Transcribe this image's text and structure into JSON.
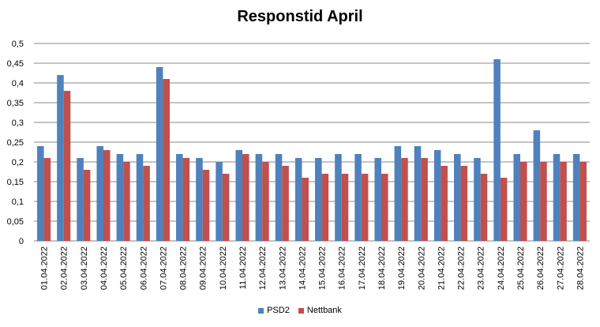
{
  "chart_data": {
    "type": "bar",
    "title": "Responstid April",
    "categories": [
      "01.04.2022",
      "02.04.2022",
      "03.04.2022",
      "04.04.2022",
      "05.04.2022",
      "06.04.2022",
      "07.04.2022",
      "08.04.2022",
      "09.04.2022",
      "10.04.2022",
      "11.04.2022",
      "12.04.2022",
      "13.04.2022",
      "14.04.2022",
      "15.04.2022",
      "16.04.2022",
      "17.04.2022",
      "18.04.2022",
      "19.04.2022",
      "20.04.2022",
      "21.04.2022",
      "22.04.2022",
      "23.04.2022",
      "24.04.2022",
      "25.04.2022",
      "26.04.2022",
      "27.04.2022",
      "28.04.2022"
    ],
    "series": [
      {
        "name": "PSD2",
        "color": "#4f81bd",
        "values": [
          0.24,
          0.42,
          0.21,
          0.24,
          0.22,
          0.22,
          0.44,
          0.22,
          0.21,
          0.2,
          0.23,
          0.22,
          0.22,
          0.21,
          0.21,
          0.22,
          0.22,
          0.21,
          0.24,
          0.24,
          0.23,
          0.22,
          0.21,
          0.46,
          0.22,
          0.28,
          0.22,
          0.22
        ]
      },
      {
        "name": "Nettbank",
        "color": "#c0504d",
        "values": [
          0.21,
          0.38,
          0.18,
          0.23,
          0.2,
          0.19,
          0.41,
          0.21,
          0.18,
          0.17,
          0.22,
          0.2,
          0.19,
          0.16,
          0.17,
          0.17,
          0.17,
          0.17,
          0.21,
          0.21,
          0.19,
          0.19,
          0.17,
          0.16,
          0.2,
          0.2,
          0.2,
          0.2
        ]
      }
    ],
    "yticks": [
      "0",
      "0,05",
      "0,1",
      "0,15",
      "0,2",
      "0,25",
      "0,3",
      "0,35",
      "0,4",
      "0,45",
      "0,5"
    ],
    "ylim": [
      0,
      0.5
    ],
    "grid": true,
    "legend_position": "bottom"
  }
}
